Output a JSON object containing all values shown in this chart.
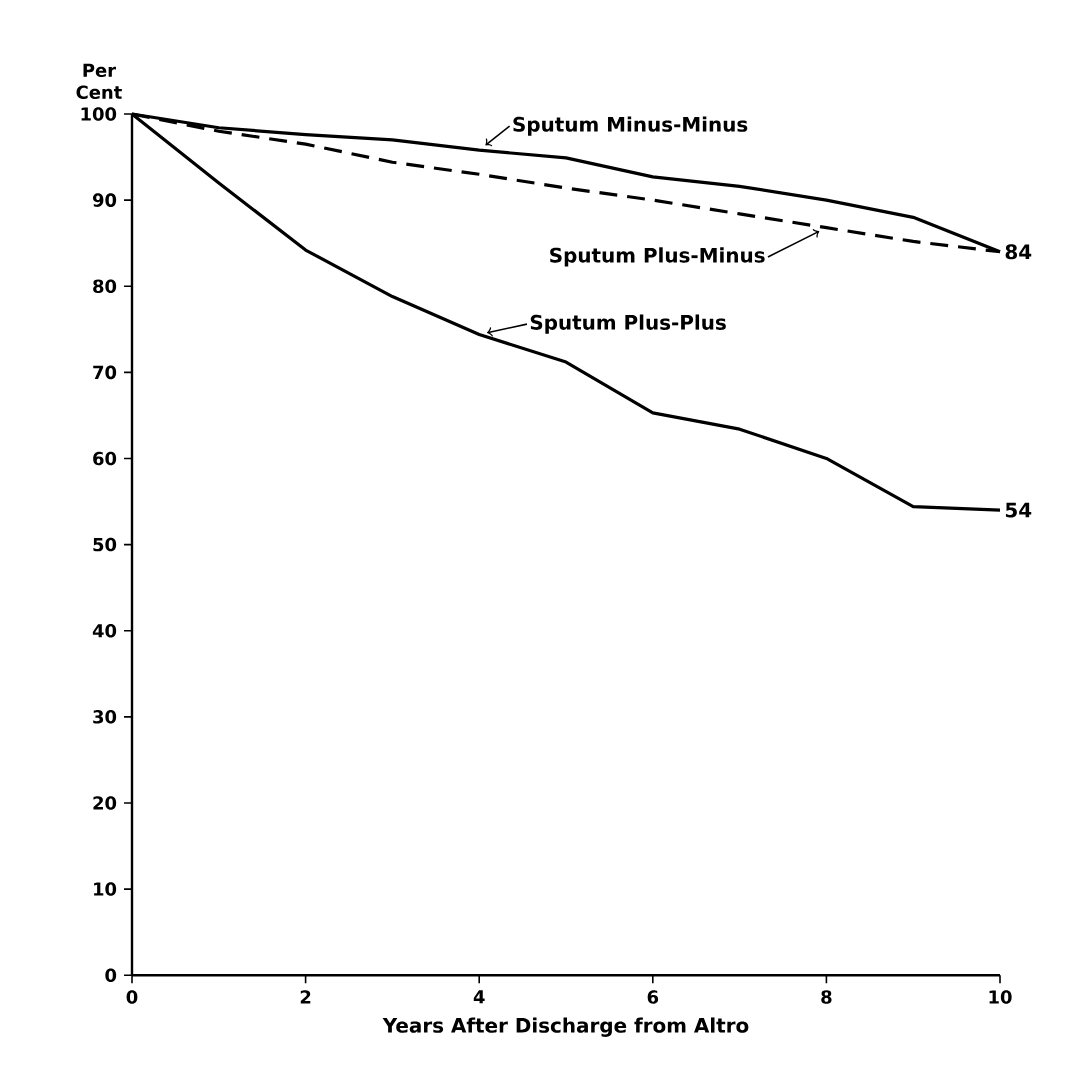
{
  "chart_data": {
    "type": "line",
    "xlabel": "Years After Discharge from Altro",
    "ylabel": "Per Cent",
    "x": [
      0,
      1,
      2,
      3,
      4,
      5,
      6,
      7,
      8,
      9,
      10
    ],
    "series": [
      {
        "name": "Sputum Minus-Minus",
        "color": "#000000",
        "line_style": "solid",
        "values": [
          100,
          98.4,
          97.6,
          97.0,
          95.8,
          94.9,
          92.7,
          91.6,
          90.0,
          88.0,
          84
        ]
      },
      {
        "name": "Sputum Plus-Minus",
        "color": "#000000",
        "line_style": "dashed",
        "values": [
          100,
          98.0,
          96.5,
          94.4,
          93.0,
          91.4,
          90.0,
          88.4,
          86.8,
          85.2,
          84
        ]
      },
      {
        "name": "Sputum Plus-Plus",
        "color": "#000000",
        "line_style": "solid",
        "values": [
          100,
          92.0,
          84.2,
          78.8,
          74.4,
          71.2,
          65.3,
          63.4,
          60.0,
          54.4,
          54
        ]
      }
    ],
    "annotations": [
      {
        "text": "84",
        "x": 10,
        "y": 84
      },
      {
        "text": "54",
        "x": 10,
        "y": 54
      }
    ],
    "xlim": [
      0,
      10
    ],
    "ylim": [
      0,
      100
    ],
    "xticks": [
      0,
      2,
      4,
      6,
      8,
      10
    ],
    "yticks": [
      0,
      10,
      20,
      30,
      40,
      50,
      60,
      70,
      80,
      90,
      100
    ],
    "grid": false,
    "legend": "top",
    "marker": "none"
  }
}
